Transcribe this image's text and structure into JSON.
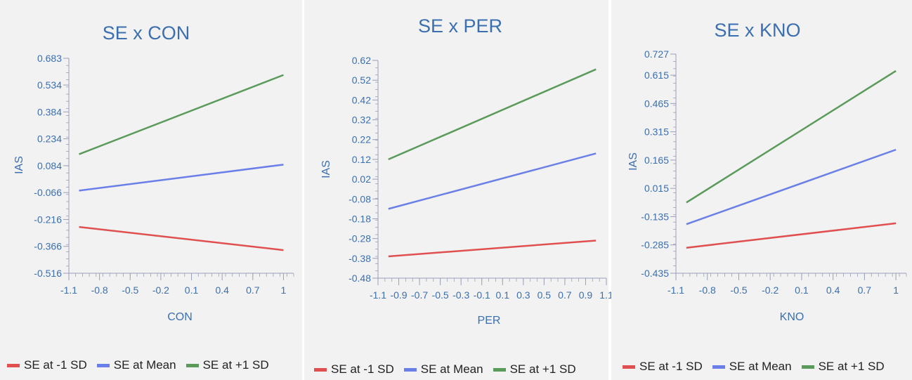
{
  "chart_data": [
    {
      "type": "line",
      "title": "SE x CON",
      "xlabel": "CON",
      "ylabel": "IAS",
      "xlim": [
        -1.1,
        1.1
      ],
      "ylim": [
        -0.516,
        0.683
      ],
      "x_ticks": [
        -1.1,
        -0.8,
        -0.5,
        -0.2,
        0.1,
        0.4,
        0.7,
        1
      ],
      "x_tick_labels": [
        "-1.1",
        "-0.8",
        "-0.5",
        "-0.2",
        "0.1",
        "0.4",
        "0.7",
        "1"
      ],
      "y_ticks": [
        0.683,
        0.534,
        0.384,
        0.234,
        0.084,
        -0.066,
        -0.216,
        -0.366,
        -0.516
      ],
      "y_tick_labels": [
        "0.683",
        "0.534",
        "0.384",
        "0.234",
        "0.084",
        "-0.066",
        "-0.216",
        "-0.366",
        "-0.516"
      ],
      "series": [
        {
          "name": "SE at -1 SD",
          "color": "#e05050",
          "x": [
            -1,
            1
          ],
          "y": [
            -0.258,
            -0.387
          ]
        },
        {
          "name": "SE at Mean",
          "color": "#6b7fe8",
          "x": [
            -1,
            1
          ],
          "y": [
            -0.055,
            0.09
          ]
        },
        {
          "name": "SE at +1 SD",
          "color": "#5a9a5a",
          "x": [
            -1,
            1
          ],
          "y": [
            0.148,
            0.59
          ]
        }
      ],
      "legend_position": "bottom"
    },
    {
      "type": "line",
      "title": "SE x PER",
      "xlabel": "PER",
      "ylabel": "IAS",
      "xlim": [
        -1.1,
        1.1
      ],
      "ylim": [
        -0.48,
        0.62
      ],
      "x_ticks": [
        -1.1,
        -0.9,
        -0.7,
        -0.5,
        -0.3,
        -0.1,
        0.1,
        0.3,
        0.5,
        0.7,
        0.9,
        1.1
      ],
      "x_tick_labels": [
        "-1.1",
        "-0.9",
        "-0.7",
        "-0.5",
        "-0.3",
        "-0.1",
        "0.1",
        "0.3",
        "0.5",
        "0.7",
        "0.9",
        "1.1"
      ],
      "y_ticks": [
        0.62,
        0.52,
        0.42,
        0.32,
        0.22,
        0.12,
        0.02,
        -0.08,
        -0.18,
        -0.28,
        -0.38,
        -0.48
      ],
      "y_tick_labels": [
        "0.62",
        "0.52",
        "0.42",
        "0.32",
        "0.22",
        "0.12",
        "0.02",
        "-0.08",
        "-0.18",
        "-0.28",
        "-0.38",
        "-0.48"
      ],
      "series": [
        {
          "name": "SE at -1 SD",
          "color": "#e05050",
          "x": [
            -1,
            1
          ],
          "y": [
            -0.37,
            -0.29
          ]
        },
        {
          "name": "SE at Mean",
          "color": "#6b7fe8",
          "x": [
            -1,
            1
          ],
          "y": [
            -0.13,
            0.15
          ]
        },
        {
          "name": "SE at +1 SD",
          "color": "#5a9a5a",
          "x": [
            -1,
            1
          ],
          "y": [
            0.12,
            0.575
          ]
        }
      ],
      "legend_position": "bottom"
    },
    {
      "type": "line",
      "title": "SE x KNO",
      "xlabel": "KNO",
      "ylabel": "IAS",
      "xlim": [
        -1.1,
        1.1
      ],
      "ylim": [
        -0.435,
        0.727
      ],
      "x_ticks": [
        -1.1,
        -0.8,
        -0.5,
        -0.2,
        0.1,
        0.4,
        0.7,
        1
      ],
      "x_tick_labels": [
        "-1.1",
        "-0.8",
        "-0.5",
        "-0.2",
        "0.1",
        "0.4",
        "0.7",
        "1"
      ],
      "y_ticks": [
        0.727,
        0.615,
        0.465,
        0.315,
        0.165,
        0.015,
        -0.135,
        -0.285,
        -0.435
      ],
      "y_tick_labels": [
        "0.727",
        "0.615",
        "0.465",
        "0.315",
        "0.165",
        "0.015",
        "-0.135",
        "-0.285",
        "-0.435"
      ],
      "series": [
        {
          "name": "SE at -1 SD",
          "color": "#e05050",
          "x": [
            -1,
            1
          ],
          "y": [
            -0.3,
            -0.17
          ]
        },
        {
          "name": "SE at Mean",
          "color": "#6b7fe8",
          "x": [
            -1,
            1
          ],
          "y": [
            -0.175,
            0.22
          ]
        },
        {
          "name": "SE at +1 SD",
          "color": "#5a9a5a",
          "x": [
            -1,
            1
          ],
          "y": [
            -0.06,
            0.638
          ]
        }
      ],
      "legend_position": "bottom"
    }
  ]
}
